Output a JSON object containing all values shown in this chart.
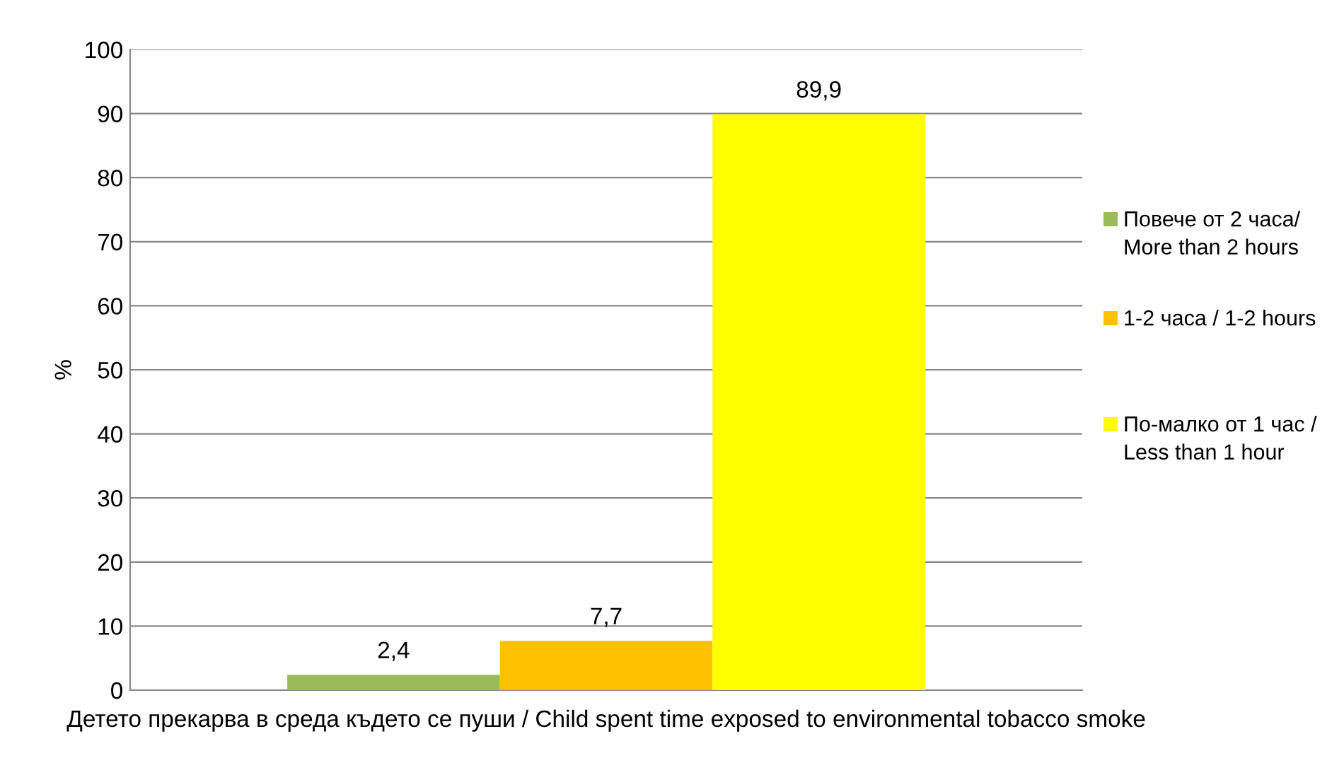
{
  "chart_data": {
    "type": "bar",
    "ylabel": "%",
    "categories": [
      "Детето прекарва в среда където се пуши / Child spent time exposed to environmental tobacco smoke"
    ],
    "series": [
      {
        "name": "Повече от 2 часа/ More than 2 hours",
        "color": "#9bbb59",
        "values": [
          2.4
        ],
        "value_labels": [
          "2,4"
        ]
      },
      {
        "name": "1-2 часа / 1-2 hours",
        "color": "#ffc000",
        "values": [
          7.7
        ],
        "value_labels": [
          "7,7"
        ]
      },
      {
        "name": "По-малко от 1 час / Less than 1 hour",
        "color": "#ffff00",
        "values": [
          89.9
        ],
        "value_labels": [
          "89,9"
        ]
      }
    ],
    "ylim": [
      0,
      100
    ],
    "yticks": [
      0,
      10,
      20,
      30,
      40,
      50,
      60,
      70,
      80,
      90,
      100
    ],
    "grid": "y",
    "legend": "right"
  }
}
